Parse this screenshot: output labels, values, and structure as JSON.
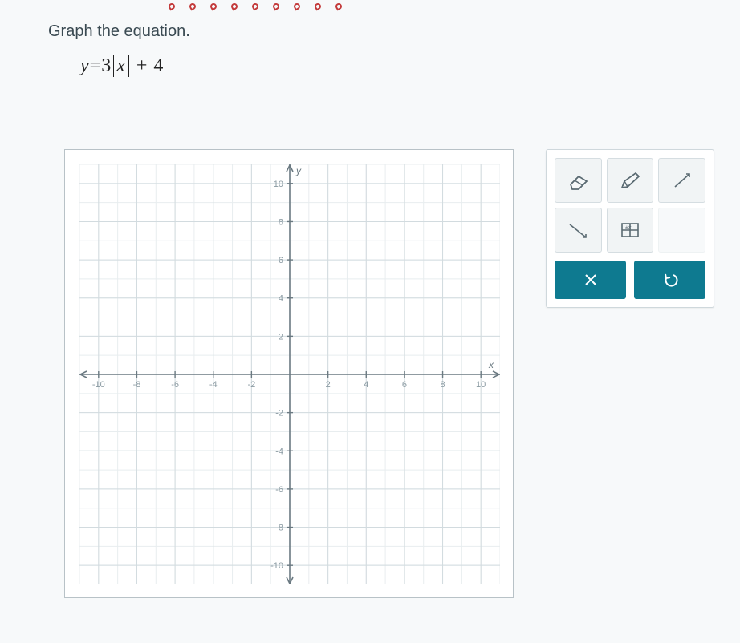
{
  "decor": {
    "dot_count": 9,
    "dot_color": "#c33a3a"
  },
  "question": {
    "prompt": "Graph the equation.",
    "eq_lhs": "y",
    "eq_eq": "=",
    "eq_coef": "3",
    "eq_var": "x",
    "eq_tail": "+ 4"
  },
  "graph": {
    "type": "cartesian-grid",
    "xlim": [
      -11,
      11
    ],
    "ylim": [
      -11,
      11
    ],
    "major_step": 2,
    "minor_step": 1,
    "x_ticks": [
      -10,
      -8,
      -6,
      -4,
      -2,
      2,
      4,
      6,
      8,
      10
    ],
    "y_ticks": [
      -10,
      -8,
      -6,
      -4,
      -2,
      2,
      4,
      6,
      8,
      10
    ],
    "x_axis_label": "x",
    "y_axis_label": "y",
    "bg_color": "#ffffff",
    "minor_grid_color": "#e8edef",
    "major_grid_color": "#d2dbdf",
    "axis_color": "#6b7a82",
    "tick_label_color": "#8a9aa2",
    "tick_label_fontsize": 11
  },
  "tools": {
    "eraser_name": "eraser-icon",
    "pencil_name": "pencil-icon",
    "ray_name": "ray-icon",
    "segment_name": "segment-icon",
    "table_name": "table-icon",
    "clear_label": "×",
    "reset_label": "↺",
    "action_bg": "#0e7a90"
  }
}
